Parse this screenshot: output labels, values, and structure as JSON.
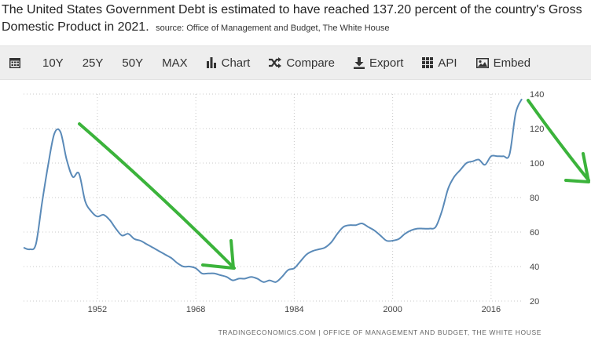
{
  "headline": {
    "text": "The United States Government Debt is estimated to have reached 137.20 percent of the country's Gross Domestic Product in 2021.",
    "source": "source: Office of Management and Budget, The White House"
  },
  "toolbar": {
    "calendar_icon": "calendar-icon",
    "items": [
      {
        "label": "10Y"
      },
      {
        "label": "25Y"
      },
      {
        "label": "50Y"
      },
      {
        "label": "MAX"
      },
      {
        "label": "Chart",
        "icon": "bar-chart-icon"
      },
      {
        "label": "Compare",
        "icon": "shuffle-icon"
      },
      {
        "label": "Export",
        "icon": "download-icon"
      },
      {
        "label": "API",
        "icon": "grid-icon"
      },
      {
        "label": "Embed",
        "icon": "image-icon"
      }
    ]
  },
  "footer": {
    "credit": "TRADINGECONOMICS.COM | OFFICE OF MANAGEMENT AND BUDGET, THE WHITE HOUSE"
  },
  "chart_data": {
    "type": "line",
    "title": "",
    "xlabel": "",
    "ylabel": "",
    "xlim": [
      1940,
      2021
    ],
    "ylim": [
      20,
      140
    ],
    "x_ticks": [
      1952,
      1968,
      1984,
      2000,
      2016
    ],
    "y_ticks": [
      20,
      40,
      60,
      80,
      100,
      120,
      140
    ],
    "grid": "dotted",
    "line_color": "#5a8ab8",
    "annotation_color": "#3bb33b",
    "series": [
      {
        "x": [
          1940,
          1941,
          1942,
          1943,
          1944,
          1945,
          1946,
          1947,
          1948,
          1949,
          1950,
          1951,
          1952,
          1953,
          1954,
          1955,
          1956,
          1957,
          1958,
          1959,
          1960,
          1961,
          1962,
          1963,
          1964,
          1965,
          1966,
          1967,
          1968,
          1969,
          1970,
          1971,
          1972,
          1973,
          1974,
          1975,
          1976,
          1977,
          1978,
          1979,
          1980,
          1981,
          1982,
          1983,
          1984,
          1985,
          1986,
          1987,
          1988,
          1989,
          1990,
          1991,
          1992,
          1993,
          1994,
          1995,
          1996,
          1997,
          1998,
          1999,
          2000,
          2001,
          2002,
          2003,
          2004,
          2005,
          2006,
          2007,
          2008,
          2009,
          2010,
          2011,
          2012,
          2013,
          2014,
          2015,
          2016,
          2017,
          2018,
          2019,
          2020,
          2021
        ],
        "values": [
          51,
          50,
          53,
          77,
          99,
          117,
          118,
          102,
          92,
          94,
          78,
          72,
          69,
          70,
          67,
          62,
          58,
          59,
          56,
          55,
          53,
          51,
          49,
          47,
          45,
          42,
          40,
          40,
          39,
          36,
          36,
          36,
          35,
          34,
          32,
          33,
          33,
          34,
          33,
          31,
          32,
          31,
          34,
          38,
          39,
          43,
          47,
          49,
          50,
          51,
          54,
          59,
          63,
          64,
          64,
          65,
          63,
          61,
          58,
          55,
          55,
          56,
          59,
          61,
          62,
          62,
          62,
          63,
          72,
          85,
          92,
          96,
          100,
          101,
          102,
          99,
          104,
          104,
          104,
          105,
          129,
          137.2
        ]
      }
    ]
  }
}
